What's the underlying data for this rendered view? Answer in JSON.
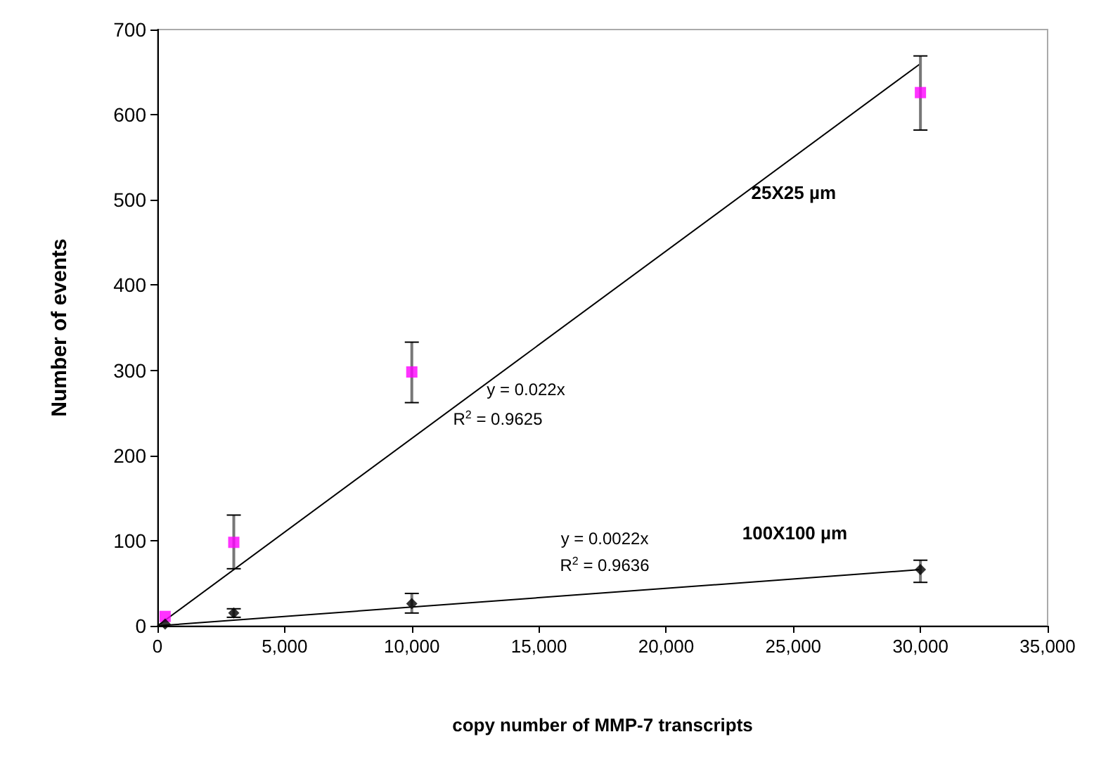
{
  "chart_data": {
    "type": "scatter",
    "xlabel": "copy number of MMP-7 transcripts",
    "ylabel": "Number of events",
    "xlim": [
      0,
      35000
    ],
    "ylim": [
      0,
      700
    ],
    "xticks": [
      0,
      {
        "value": 5000,
        "label": "5,000"
      },
      {
        "value": 10000,
        "label": "10,000"
      },
      {
        "value": 15000,
        "label": "15,000"
      },
      {
        "value": 20000,
        "label": "20,000"
      },
      {
        "value": 25000,
        "label": "25,000"
      },
      {
        "value": 30000,
        "label": "30,000"
      },
      {
        "value": 35000,
        "label": "35,000"
      }
    ],
    "yticks": [
      0,
      100,
      200,
      300,
      400,
      500,
      600,
      700
    ],
    "grid": false,
    "legend": false,
    "series": [
      {
        "color": "#ff00ff",
        "marker": "square",
        "x": [
          300,
          3000,
          10000,
          30000
        ],
        "values": [
          11,
          98,
          298,
          626
        ],
        "errors": [
          null,
          [
            67,
            130
          ],
          [
            262,
            333
          ],
          [
            582,
            669
          ]
        ]
      },
      {
        "color": "#000000",
        "marker": "diamond",
        "x": [
          300,
          3000,
          10000,
          30000
        ],
        "values": [
          2,
          15,
          26,
          66
        ],
        "errors": [
          null,
          [
            10,
            20
          ],
          [
            15,
            38
          ],
          [
            51,
            77
          ]
        ]
      },
      {
        "type": "line",
        "name": "25X25 µm",
        "color": "#000000",
        "marker": "none",
        "x": [
          0,
          30000
        ],
        "values": [
          0,
          660
        ]
      },
      {
        "type": "line",
        "name": "100X100 µm",
        "color": "#000000",
        "marker": "none",
        "x": [
          0,
          30000
        ],
        "values": [
          0,
          66
        ]
      }
    ],
    "annotations": [
      "y = 0.022x",
      "R$^{2}$ = 0.9625",
      "y = 0.0022x",
      "R$^{2}$ = 0.9636"
    ]
  }
}
